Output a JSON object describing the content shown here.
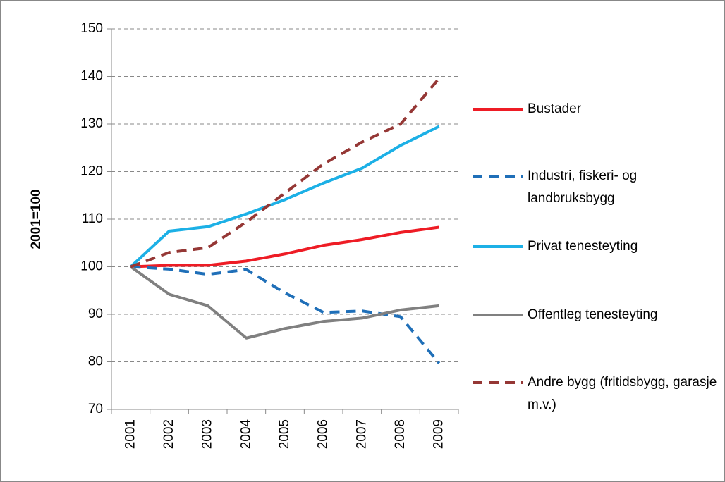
{
  "chart_data": {
    "type": "line",
    "y_label": "2001=100",
    "categories": [
      "2001",
      "2002",
      "2003",
      "2004",
      "2005",
      "2006",
      "2007",
      "2008",
      "2009"
    ],
    "series": [
      {
        "name": "Bustader",
        "color": "#ee1c25",
        "line_style": "solid",
        "values": [
          100,
          100.3,
          100.3,
          101.2,
          102.7,
          104.5,
          105.7,
          107.2,
          108.3
        ]
      },
      {
        "name": "Industri, fiskeri- og landbruksbygg",
        "color": "#1f6fb8",
        "line_style": "dashed",
        "values": [
          100,
          99.5,
          98.4,
          99.4,
          94.5,
          90.4,
          90.7,
          89.5,
          79.7
        ]
      },
      {
        "name": "Privat tenesteyting",
        "color": "#1cb0e6",
        "line_style": "solid",
        "values": [
          100,
          107.5,
          108.4,
          111.1,
          114.1,
          117.6,
          120.7,
          125.5,
          129.5
        ]
      },
      {
        "name": "Offentleg tenesteyting",
        "color": "#808080",
        "line_style": "solid",
        "values": [
          100,
          94.2,
          91.8,
          85.0,
          87.0,
          88.5,
          89.2,
          90.9,
          91.8
        ]
      },
      {
        "name": "Andre bygg (fritidsbygg, garasje m.v.)",
        "color": "#953735",
        "line_style": "dashed",
        "values": [
          100,
          103.0,
          104.0,
          109.4,
          115.5,
          121.6,
          126.2,
          130.0,
          139.6
        ]
      }
    ],
    "ylim": [
      70,
      150
    ],
    "yticks": [
      70,
      80,
      90,
      100,
      110,
      120,
      130,
      140,
      150
    ],
    "grid": true,
    "legend": "right"
  }
}
